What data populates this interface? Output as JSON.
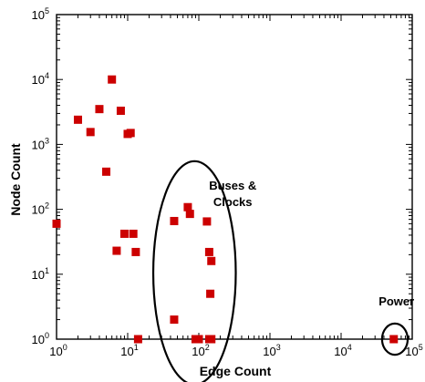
{
  "chart_data": {
    "type": "scatter",
    "xscale": "log",
    "yscale": "log",
    "xlim": [
      1,
      100000
    ],
    "ylim": [
      1,
      100000
    ],
    "xlabel": "Edge Count",
    "ylabel": "Node Count",
    "grid": false,
    "marker_color": "#cc0000",
    "marker_shape": "square",
    "x_ticks": [
      {
        "base": "10",
        "exp": "0"
      },
      {
        "base": "10",
        "exp": "1"
      },
      {
        "base": "10",
        "exp": "2"
      },
      {
        "base": "10",
        "exp": "3"
      },
      {
        "base": "10",
        "exp": "4"
      },
      {
        "base": "10",
        "exp": "5"
      }
    ],
    "y_ticks": [
      {
        "base": "10",
        "exp": "0"
      },
      {
        "base": "10",
        "exp": "1"
      },
      {
        "base": "10",
        "exp": "2"
      },
      {
        "base": "10",
        "exp": "3"
      },
      {
        "base": "10",
        "exp": "4"
      },
      {
        "base": "10",
        "exp": "5"
      }
    ],
    "points": [
      [
        1.0,
        60
      ],
      [
        2.0,
        2400
      ],
      [
        3.0,
        1550
      ],
      [
        4.0,
        3500
      ],
      [
        5.0,
        380
      ],
      [
        6.0,
        10000
      ],
      [
        7.0,
        23
      ],
      [
        8.0,
        3300
      ],
      [
        9.0,
        42
      ],
      [
        10.0,
        1450
      ],
      [
        11.0,
        1500
      ],
      [
        12.0,
        42
      ],
      [
        13.0,
        22
      ],
      [
        14.0,
        1.0
      ],
      [
        45,
        66
      ],
      [
        45,
        2.0
      ],
      [
        70,
        108
      ],
      [
        75,
        85
      ],
      [
        90,
        1.0
      ],
      [
        100,
        1.0
      ],
      [
        130,
        65
      ],
      [
        140,
        22
      ],
      [
        150,
        16
      ],
      [
        145,
        5.0
      ],
      [
        140,
        1.0
      ],
      [
        150,
        1.0
      ],
      [
        55000,
        1.0
      ]
    ],
    "annotations": [
      {
        "lines": [
          "Buses &",
          "Clocks"
        ],
        "x": 300,
        "y": 200,
        "ellipse": {
          "cx": 87,
          "cy": 10.5,
          "rx_decades": 0.58,
          "ry_decades": 1.72
        }
      },
      {
        "lines": [
          "Power"
        ],
        "x": 60000,
        "y": 3.3,
        "ellipse": {
          "cx": 57000,
          "cy": 1.0,
          "rx_decades": 0.18,
          "ry_decades": 0.24
        }
      }
    ]
  }
}
